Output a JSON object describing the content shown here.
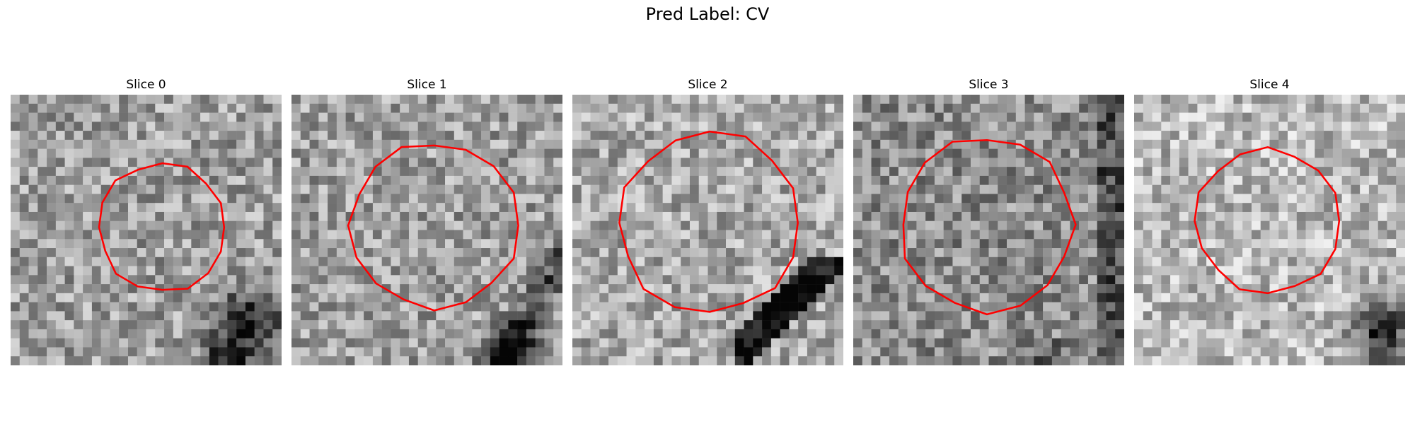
{
  "figure": {
    "title": "Pred Label: CV",
    "colors": {
      "contour": "#ff0000",
      "background": "#ffffff"
    },
    "panels": [
      {
        "title": "Slice 0",
        "contour_center": [
          16.8,
          14.7
        ],
        "contour_radius": 7.1,
        "dark_feature": "bottom-right blob"
      },
      {
        "title": "Slice 1",
        "contour_center": [
          15.8,
          14.5
        ],
        "contour_radius": 9.2,
        "dark_feature": "bottom-right blob"
      },
      {
        "title": "Slice 2",
        "contour_center": [
          15.2,
          14.2
        ],
        "contour_radius": 10.0,
        "dark_feature": "diagonal dark band lower-right"
      },
      {
        "title": "Slice 3",
        "contour_center": [
          14.8,
          14.4
        ],
        "contour_radius": 9.6,
        "dark_feature": "right edge dark band"
      },
      {
        "title": "Slice 4",
        "contour_center": [
          14.8,
          14.0
        ],
        "contour_radius": 8.0,
        "dark_feature": "bottom-right blob"
      }
    ]
  }
}
